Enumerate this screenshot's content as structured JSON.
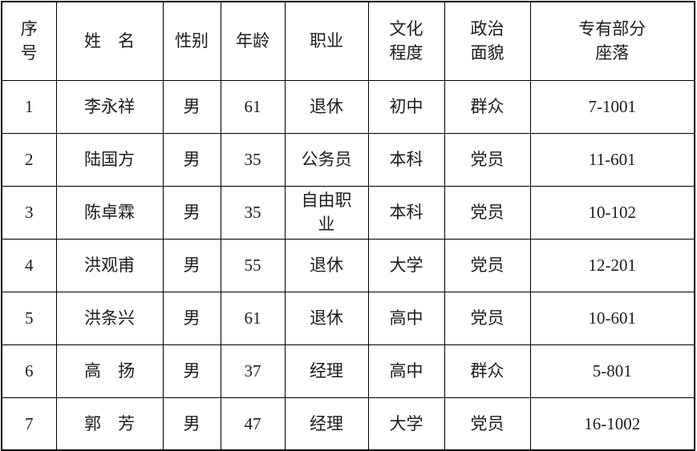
{
  "table": {
    "title": "owner-roster-table",
    "columns": [
      {
        "key": "index",
        "label": "序\n号"
      },
      {
        "key": "name",
        "label": "姓　名"
      },
      {
        "key": "gender",
        "label": "性别"
      },
      {
        "key": "age",
        "label": "年龄"
      },
      {
        "key": "occupation",
        "label": "职业"
      },
      {
        "key": "education",
        "label": "文化\n程度"
      },
      {
        "key": "political_status",
        "label": "政治\n面貌"
      },
      {
        "key": "unit_location",
        "label": "专有部分\n座落"
      }
    ],
    "rows": [
      [
        "1",
        "李永祥",
        "男",
        "61",
        "退休",
        "初中",
        "群众",
        "7-1001"
      ],
      [
        "2",
        "陆国方",
        "男",
        "35",
        "公务员",
        "本科",
        "党员",
        "11-601"
      ],
      [
        "3",
        "陈卓霖",
        "男",
        "35",
        "自由职\n业",
        "本科",
        "党员",
        "10-102"
      ],
      [
        "4",
        "洪观甫",
        "男",
        "55",
        "退休",
        "大学",
        "党员",
        "12-201"
      ],
      [
        "5",
        "洪条兴",
        "男",
        "61",
        "退休",
        "高中",
        "党员",
        "10-601"
      ],
      [
        "6",
        "高　扬",
        "男",
        "37",
        "经理",
        "高中",
        "群众",
        "5-801"
      ],
      [
        "7",
        "郭　芳",
        "男",
        "47",
        "经理",
        "大学",
        "党员",
        "16-1002"
      ]
    ]
  },
  "colors": {
    "border": "#000000",
    "text": "#1c1c1c",
    "background": "#ffffff"
  }
}
